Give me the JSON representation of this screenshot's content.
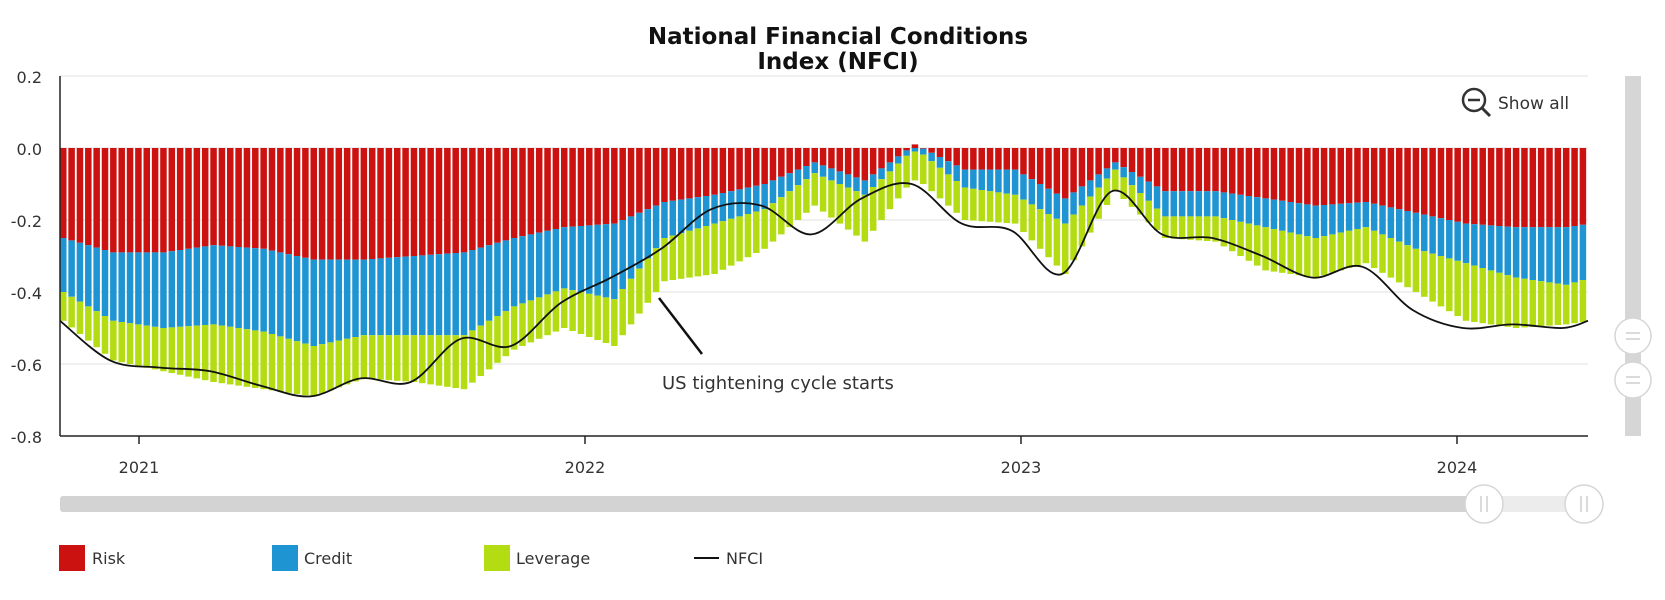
{
  "chart_data": {
    "type": "bar",
    "title_lines": [
      "National Financial Conditions",
      "Index (NFCI)"
    ],
    "show_all_label": "Show all",
    "annotation": "US tightening cycle starts",
    "y_ticks": [
      "0.2",
      "0.0",
      "-0.2",
      "-0.4",
      "-0.6",
      "-0.8"
    ],
    "ylim": [
      -0.8,
      0.2
    ],
    "x_ticks": [
      "2021",
      "2022",
      "2023",
      "2024"
    ],
    "grid": true,
    "legend_position": "bottom-left",
    "legend": [
      {
        "name": "Risk",
        "type": "bar"
      },
      {
        "name": "Credit",
        "type": "bar"
      },
      {
        "name": "Leverage",
        "type": "bar"
      },
      {
        "name": "NFCI",
        "type": "line"
      }
    ],
    "colors": {
      "Risk": "#cc1111",
      "Credit": "#1e94d2",
      "Leverage": "#b4dc12",
      "NFCI": "#111111"
    },
    "x_range": [
      "2020-10-23",
      "2024-04-26"
    ],
    "x": [
      "2020-10-23",
      "2020-12-04",
      "2021-01-15",
      "2021-02-26",
      "2021-04-09",
      "2021-05-21",
      "2021-07-02",
      "2021-08-13",
      "2021-09-24",
      "2021-11-05",
      "2021-12-17",
      "2022-01-28",
      "2022-03-11",
      "2022-04-22",
      "2022-06-03",
      "2022-07-15",
      "2022-08-26",
      "2022-10-07",
      "2022-11-18",
      "2022-12-30",
      "2023-02-10",
      "2023-03-24",
      "2023-05-05",
      "2023-06-16",
      "2023-07-28",
      "2023-09-08",
      "2023-10-20",
      "2023-12-01",
      "2024-01-12",
      "2024-02-23",
      "2024-04-05",
      "2024-04-26"
    ],
    "series": [
      {
        "name": "Risk",
        "values": [
          -0.25,
          -0.29,
          -0.29,
          -0.27,
          -0.28,
          -0.31,
          -0.31,
          -0.3,
          -0.29,
          -0.25,
          -0.22,
          -0.21,
          -0.15,
          -0.13,
          -0.1,
          -0.04,
          -0.09,
          0.01,
          -0.06,
          -0.06,
          -0.14,
          -0.04,
          -0.12,
          -0.12,
          -0.14,
          -0.16,
          -0.15,
          -0.18,
          -0.21,
          -0.22,
          -0.22,
          -0.21
        ]
      },
      {
        "name": "Credit",
        "values": [
          -0.15,
          -0.19,
          -0.21,
          -0.22,
          -0.23,
          -0.24,
          -0.21,
          -0.22,
          -0.23,
          -0.19,
          -0.17,
          -0.21,
          -0.1,
          -0.08,
          -0.07,
          -0.03,
          -0.04,
          -0.01,
          -0.05,
          -0.07,
          -0.07,
          -0.02,
          -0.07,
          -0.07,
          -0.08,
          -0.09,
          -0.07,
          -0.1,
          -0.11,
          -0.14,
          -0.16,
          -0.15
        ]
      },
      {
        "name": "Leverage",
        "values": [
          -0.08,
          -0.11,
          -0.12,
          -0.16,
          -0.16,
          -0.14,
          -0.12,
          -0.13,
          -0.15,
          -0.12,
          -0.11,
          -0.13,
          -0.12,
          -0.14,
          -0.11,
          -0.09,
          -0.13,
          -0.08,
          -0.09,
          -0.08,
          -0.14,
          -0.06,
          -0.06,
          -0.07,
          -0.12,
          -0.11,
          -0.1,
          -0.12,
          -0.16,
          -0.14,
          -0.11,
          -0.12
        ]
      },
      {
        "name": "NFCI",
        "values": [
          -0.48,
          -0.59,
          -0.61,
          -0.62,
          -0.66,
          -0.69,
          -0.64,
          -0.65,
          -0.53,
          -0.55,
          -0.43,
          -0.36,
          -0.28,
          -0.17,
          -0.16,
          -0.24,
          -0.14,
          -0.1,
          -0.21,
          -0.23,
          -0.35,
          -0.12,
          -0.24,
          -0.25,
          -0.3,
          -0.36,
          -0.33,
          -0.45,
          -0.5,
          -0.49,
          -0.5,
          -0.48
        ]
      }
    ]
  }
}
